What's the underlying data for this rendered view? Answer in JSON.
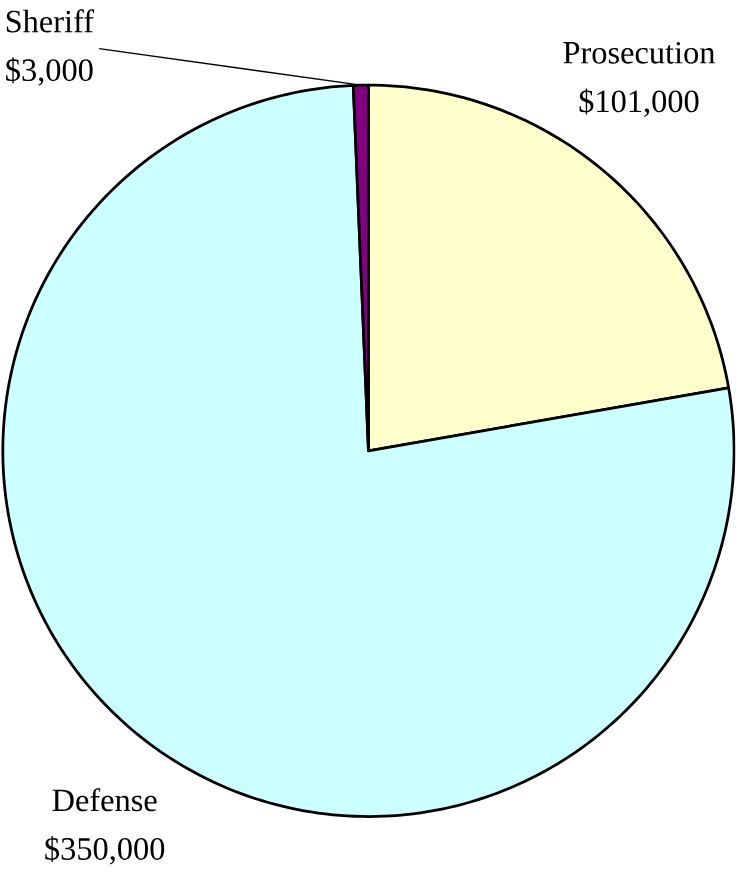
{
  "chart_data": {
    "type": "pie",
    "categories": [
      "Prosecution",
      "Defense",
      "Sheriff"
    ],
    "values": [
      101000,
      350000,
      3000
    ],
    "value_labels": [
      "$101,000",
      "$350,000",
      "$3,000"
    ],
    "colors": [
      "#ffffcc",
      "#ccffff",
      "#800080"
    ]
  }
}
